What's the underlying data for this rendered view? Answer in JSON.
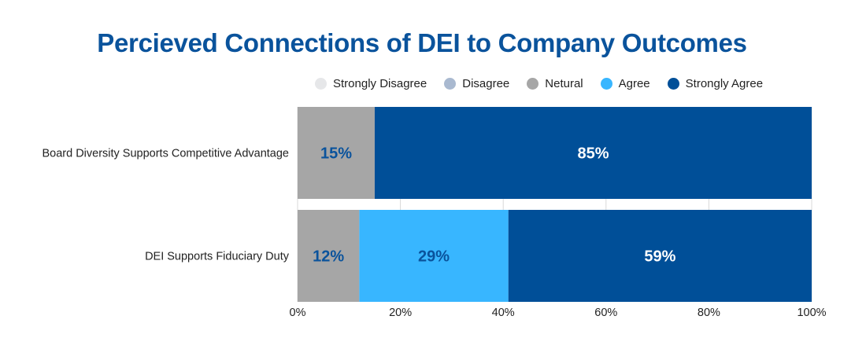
{
  "chart_data": {
    "type": "bar",
    "orientation": "horizontal",
    "stacked": true,
    "title": "Percieved Connections of DEI to Company Outcomes",
    "xlabel": "",
    "ylabel": "",
    "xlim": [
      0,
      100
    ],
    "x_ticks": [
      "0%",
      "20%",
      "40%",
      "60%",
      "80%",
      "100%"
    ],
    "x_tick_values": [
      0,
      20,
      40,
      60,
      80,
      100
    ],
    "legend_position": "top",
    "grid": true,
    "categories": [
      "Board Diversity Supports Competitive Advantage",
      "DEI Supports Fiduciary Duty"
    ],
    "series": [
      {
        "name": "Strongly Disagree",
        "color": "#e6e7e9",
        "values": [
          0,
          0
        ],
        "label_color": "#0a539c"
      },
      {
        "name": "Disagree",
        "color": "#a9b9d0",
        "values": [
          0,
          0
        ],
        "label_color": "#0a539c"
      },
      {
        "name": "Netural",
        "color": "#a6a6a6",
        "values": [
          15,
          12
        ],
        "label_color": "#0a539c"
      },
      {
        "name": "Agree",
        "color": "#38b6ff",
        "values": [
          0,
          29
        ],
        "label_color": "#0a539c"
      },
      {
        "name": "Strongly Agree",
        "color": "#004f98",
        "values": [
          85,
          59
        ],
        "label_color": "#ffffff"
      }
    ]
  }
}
